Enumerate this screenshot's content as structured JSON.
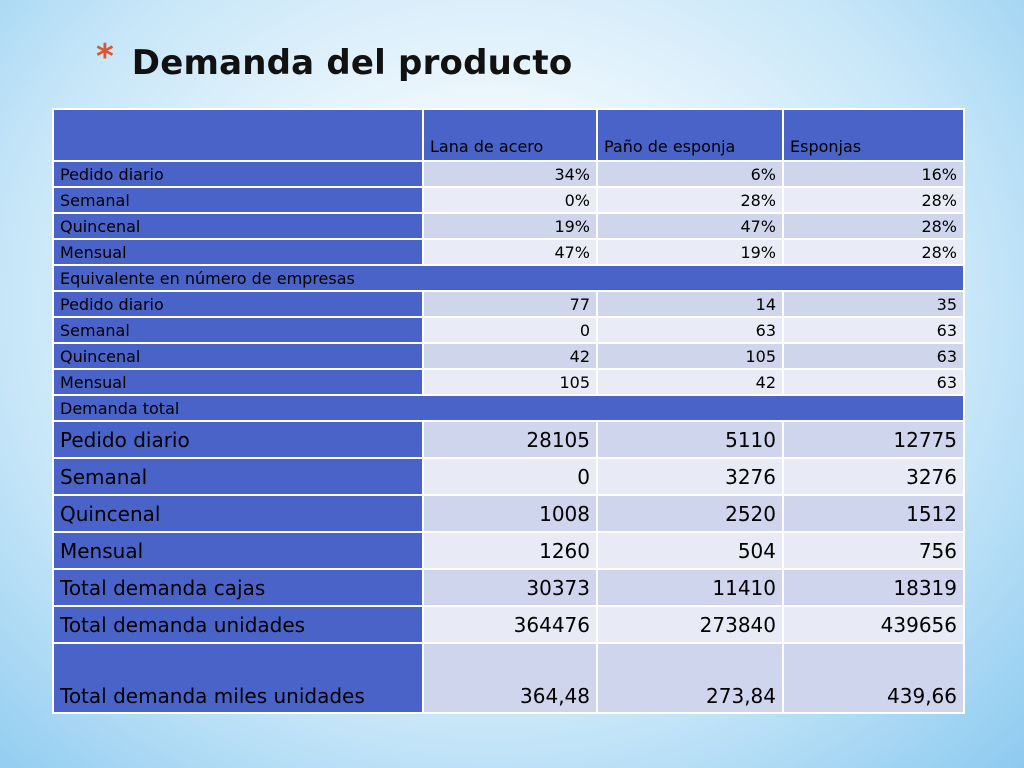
{
  "title": "Demanda del producto",
  "bullet": "*",
  "header": [
    "",
    "Lana de acero",
    "Paño de esponja",
    "Esponjas"
  ],
  "percent_rows": [
    {
      "label": "Pedido diario",
      "values": [
        "34%",
        "6%",
        "16%"
      ]
    },
    {
      "label": "Semanal",
      "values": [
        "0%",
        "28%",
        "28%"
      ]
    },
    {
      "label": "Quincenal",
      "values": [
        "19%",
        "47%",
        "28%"
      ]
    },
    {
      "label": "Mensual",
      "values": [
        "47%",
        "19%",
        "28%"
      ]
    }
  ],
  "section_companies": "Equivalente en número de empresas",
  "company_rows": [
    {
      "label": "Pedido diario",
      "values": [
        "77",
        "14",
        "35"
      ]
    },
    {
      "label": "Semanal",
      "values": [
        "0",
        "63",
        "63"
      ]
    },
    {
      "label": "Quincenal",
      "values": [
        "42",
        "105",
        "63"
      ]
    },
    {
      "label": "Mensual",
      "values": [
        "105",
        "42",
        "63"
      ]
    }
  ],
  "section_demand": "Demanda total",
  "demand_rows": [
    {
      "label": "Pedido diario",
      "values": [
        "28105",
        "5110",
        "12775"
      ]
    },
    {
      "label": "Semanal",
      "values": [
        "0",
        "3276",
        "3276"
      ]
    },
    {
      "label": "Quincenal",
      "values": [
        "1008",
        "2520",
        "1512"
      ]
    },
    {
      "label": "Mensual",
      "values": [
        "1260",
        "504",
        "756"
      ]
    },
    {
      "label": "Total demanda cajas",
      "values": [
        "30373",
        "11410",
        "18319"
      ]
    },
    {
      "label": "Total demanda unidades",
      "values": [
        "364476",
        "273840",
        "439656"
      ]
    },
    {
      "label": "Total demanda miles unidades",
      "values": [
        "364,48",
        "273,84",
        "439,66"
      ]
    }
  ]
}
